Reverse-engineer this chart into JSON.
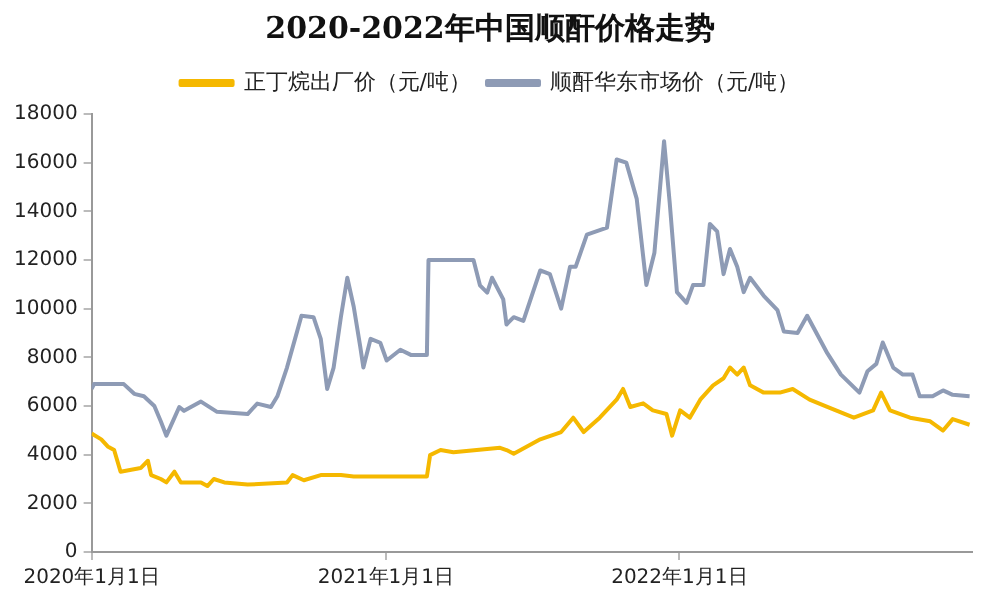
{
  "chart_data": {
    "type": "line",
    "title": "2020-2022年中国顺酐价格走势",
    "legend": "top",
    "grid": false,
    "marker": "none",
    "line_style": "solid",
    "xlim": [
      "2020-01-01",
      "2022-12-31"
    ],
    "xticks": [
      {
        "value": "2020-01-01",
        "label": "2020年1月1日"
      },
      {
        "value": "2021-01-01",
        "label": "2021年1月1日"
      },
      {
        "value": "2022-01-01",
        "label": "2022年1月1日"
      }
    ],
    "ylim": [
      0,
      18000
    ],
    "yticks": [
      0,
      2000,
      4000,
      6000,
      8000,
      10000,
      12000,
      14000,
      16000,
      18000
    ],
    "series": [
      {
        "name": "正丁烷出厂价（元/吨）",
        "color": "#f5b800",
        "x": [
          "2020-01-01",
          "2020-01-13",
          "2020-01-21",
          "2020-01-29",
          "2020-02-06",
          "2020-03-02",
          "2020-03-11",
          "2020-03-15",
          "2020-03-27",
          "2020-04-03",
          "2020-04-13",
          "2020-04-21",
          "2020-05-16",
          "2020-05-24",
          "2020-06-01",
          "2020-06-14",
          "2020-07-13",
          "2020-08-31",
          "2020-09-07",
          "2020-09-21",
          "2020-10-12",
          "2020-11-06",
          "2020-11-22",
          "2021-02-21",
          "2021-02-25",
          "2021-03-10",
          "2021-03-26",
          "2021-05-23",
          "2021-05-31",
          "2021-06-09",
          "2021-07-12",
          "2021-08-07",
          "2021-08-22",
          "2021-09-04",
          "2021-09-24",
          "2021-10-15",
          "2021-10-23",
          "2021-11-01",
          "2021-11-17",
          "2021-11-29",
          "2021-12-16",
          "2021-12-23",
          "2022-01-02",
          "2022-01-14",
          "2022-01-27",
          "2022-02-12",
          "2022-02-25",
          "2022-03-05",
          "2022-03-14",
          "2022-03-22",
          "2022-03-30",
          "2022-04-16",
          "2022-05-06",
          "2022-05-22",
          "2022-06-12",
          "2022-07-04",
          "2022-08-06",
          "2022-08-30",
          "2022-09-09",
          "2022-09-20",
          "2022-10-15",
          "2022-11-09",
          "2022-11-25",
          "2022-12-07",
          "2022-12-28"
        ],
        "values": [
          4870,
          4630,
          4340,
          4190,
          3300,
          3450,
          3750,
          3160,
          3000,
          2860,
          3300,
          2860,
          2860,
          2710,
          3000,
          2860,
          2770,
          2860,
          3160,
          2950,
          3160,
          3160,
          3100,
          3100,
          3980,
          4190,
          4100,
          4280,
          4190,
          4040,
          4630,
          4930,
          5520,
          4930,
          5520,
          6260,
          6700,
          5960,
          6110,
          5820,
          5670,
          4780,
          5820,
          5520,
          6260,
          6850,
          7140,
          7580,
          7290,
          7580,
          6850,
          6550,
          6550,
          6700,
          6260,
          5960,
          5520,
          5820,
          6550,
          5820,
          5520,
          5370,
          4990,
          5460,
          5230
        ]
      },
      {
        "name": "顺酐华东市场价（元/吨）",
        "color": "#8e9bb5",
        "x": [
          "2020-01-01",
          "2020-01-04",
          "2020-02-10",
          "2020-02-23",
          "2020-03-06",
          "2020-03-19",
          "2020-03-27",
          "2020-04-03",
          "2020-04-11",
          "2020-04-19",
          "2020-04-25",
          "2020-05-16",
          "2020-06-05",
          "2020-07-13",
          "2020-07-25",
          "2020-08-11",
          "2020-08-19",
          "2020-08-31",
          "2020-09-10",
          "2020-09-18",
          "2020-10-03",
          "2020-10-12",
          "2020-10-20",
          "2020-10-28",
          "2020-11-06",
          "2020-11-14",
          "2020-11-22",
          "2020-11-30",
          "2020-12-04",
          "2020-12-13",
          "2020-12-25",
          "2021-01-02",
          "2021-01-19",
          "2021-02-01",
          "2021-02-21",
          "2021-02-23",
          "2021-04-20",
          "2021-04-28",
          "2021-05-07",
          "2021-05-13",
          "2021-05-27",
          "2021-05-31",
          "2021-06-09",
          "2021-06-21",
          "2021-07-12",
          "2021-07-24",
          "2021-08-07",
          "2021-08-18",
          "2021-08-25",
          "2021-09-08",
          "2021-10-03",
          "2021-10-15",
          "2021-10-27",
          "2021-11-09",
          "2021-11-21",
          "2021-12-01",
          "2021-12-13",
          "2021-12-20",
          "2021-12-29",
          "2022-01-10",
          "2022-01-18",
          "2022-01-31",
          "2022-02-08",
          "2022-02-17",
          "2022-02-25",
          "2022-03-05",
          "2022-03-14",
          "2022-03-22",
          "2022-03-30",
          "2022-04-16",
          "2022-05-03",
          "2022-05-11",
          "2022-05-28",
          "2022-06-09",
          "2022-06-22",
          "2022-07-04",
          "2022-07-21",
          "2022-08-13",
          "2022-08-23",
          "2022-09-03",
          "2022-09-11",
          "2022-09-24",
          "2022-10-06",
          "2022-10-18",
          "2022-10-27",
          "2022-11-12",
          "2022-11-25",
          "2022-12-07",
          "2022-12-28"
        ],
        "values": [
          6700,
          6900,
          6900,
          6500,
          6400,
          6000,
          5370,
          4780,
          5370,
          5960,
          5800,
          6180,
          5760,
          5670,
          6100,
          5960,
          6400,
          7580,
          8760,
          9710,
          9650,
          8760,
          6700,
          7580,
          9650,
          11270,
          10080,
          8460,
          7580,
          8760,
          8600,
          7870,
          8310,
          8100,
          8100,
          12000,
          12000,
          10960,
          10660,
          11270,
          10380,
          9350,
          9650,
          9500,
          11570,
          11420,
          10000,
          11720,
          11720,
          13040,
          13330,
          16130,
          16000,
          14510,
          10970,
          12300,
          16880,
          14360,
          10680,
          10240,
          10970,
          10970,
          13480,
          13180,
          11420,
          12450,
          11720,
          10680,
          11270,
          10530,
          9940,
          9060,
          9000,
          9710,
          8910,
          8170,
          7290,
          6550,
          7430,
          7730,
          8610,
          7580,
          7290,
          7290,
          6400,
          6400,
          6640,
          6460,
          6400
        ]
      }
    ]
  }
}
